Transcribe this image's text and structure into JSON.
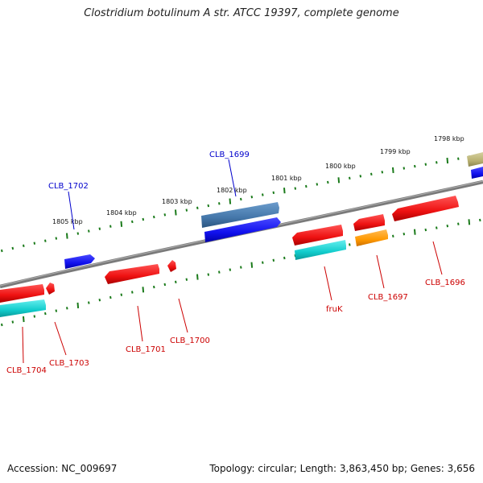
{
  "title": "Clostridium botulinum A str. ATCC 19397, complete genome",
  "footer": {
    "accession": "Accession: NC_009697",
    "stats": "Topology: circular; Length: 3,863,450 bp; Genes: 3,656"
  },
  "colors": {
    "backbone": "#808080",
    "tick": "#1a7a1a",
    "plus_label": "#0000cc",
    "minus_label": "#cc0000",
    "gene_red": "#ee1111",
    "gene_blue": "#1111ee",
    "gene_steel": "#4477aa",
    "gene_cyan": "#11cccc",
    "gene_orange": "#ff9900",
    "gene_olive": "#b8b070"
  },
  "scale": {
    "unit": "kbp",
    "labels": [
      "1798 kbp",
      "1799 kbp",
      "1800 kbp",
      "1801 kbp",
      "1802 kbp",
      "1803 kbp",
      "1804 kbp",
      "1805 kbp"
    ]
  },
  "genes": [
    {
      "label": "CLB_1699",
      "strand": "plus",
      "color": "gene_steel"
    },
    {
      "label": "CLB_1702",
      "strand": "plus",
      "color": "gene_blue"
    },
    {
      "label": "CLB_1696",
      "strand": "minus",
      "color": "gene_red"
    },
    {
      "label": "CLB_1697",
      "strand": "minus",
      "color": "gene_orange"
    },
    {
      "label": "fruK",
      "strand": "minus",
      "color": "gene_red"
    },
    {
      "label": "CLB_1700",
      "strand": "minus",
      "color": "gene_red"
    },
    {
      "label": "CLB_1701",
      "strand": "minus",
      "color": "gene_red"
    },
    {
      "label": "CLB_1703",
      "strand": "minus",
      "color": "gene_red"
    },
    {
      "label": "CLB_1704",
      "strand": "minus",
      "color": "gene_red"
    }
  ]
}
